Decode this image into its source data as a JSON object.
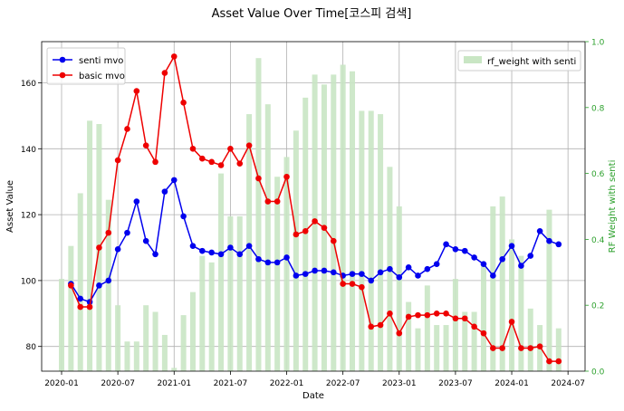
{
  "chart_data": {
    "type": "line",
    "title": "Asset Value Over Time[코스피 검색]",
    "xlabel": "Date",
    "ylabel": "Asset Value",
    "y2label": "RF Weight with senti",
    "xticks": [
      "2020-01",
      "2020-07",
      "2021-01",
      "2021-07",
      "2022-01",
      "2022-07",
      "2023-01",
      "2023-07",
      "2024-01",
      "2024-07"
    ],
    "yticks": [
      80,
      100,
      120,
      140,
      160
    ],
    "y2ticks": [
      "0.0",
      "0.2",
      "0.4",
      "0.6",
      "0.8",
      "1.0"
    ],
    "ylim": [
      72.5,
      172.5
    ],
    "y2lim": [
      0,
      1
    ],
    "grid": true,
    "legend_left": "upper-left",
    "legend_right": "upper-right",
    "colors": {
      "senti": "#0000ee",
      "basic": "#ee0000",
      "bars": "#c9e6c4",
      "y2axis": "#2ca02c"
    },
    "series": [
      {
        "name": "senti mvo",
        "color": "#0000ee",
        "x": [
          "2020-02",
          "2020-03",
          "2020-04",
          "2020-05",
          "2020-06",
          "2020-07",
          "2020-08",
          "2020-09",
          "2020-10",
          "2020-11",
          "2020-12",
          "2021-01",
          "2021-02",
          "2021-03",
          "2021-04",
          "2021-05",
          "2021-06",
          "2021-07",
          "2021-08",
          "2021-09",
          "2021-10",
          "2021-11",
          "2021-12",
          "2022-01",
          "2022-02",
          "2022-03",
          "2022-04",
          "2022-05",
          "2022-06",
          "2022-07",
          "2022-08",
          "2022-09",
          "2022-10",
          "2022-11",
          "2022-12",
          "2023-01",
          "2023-02",
          "2023-03",
          "2023-04",
          "2023-05",
          "2023-06",
          "2023-07",
          "2023-08",
          "2023-09",
          "2023-10",
          "2023-11",
          "2023-12",
          "2024-01",
          "2024-02",
          "2024-03",
          "2024-04",
          "2024-05",
          "2024-06"
        ],
        "values": [
          99,
          94.5,
          93.5,
          98.5,
          100,
          109.5,
          114.5,
          124,
          112,
          108,
          127,
          130.5,
          119.5,
          110.5,
          109,
          108.5,
          108,
          110,
          108,
          110.5,
          106.5,
          105.5,
          105.5,
          107,
          101.5,
          102,
          103,
          103,
          102.5,
          101.5,
          102,
          102,
          100,
          102.5,
          103.5,
          101,
          104,
          101.5,
          103.5,
          105,
          111,
          109.5,
          109,
          107,
          105,
          101.5,
          106.5,
          110.5,
          104.5,
          107.5,
          115,
          112,
          111
        ]
      },
      {
        "name": "basic mvo",
        "color": "#ee0000",
        "x": [
          "2020-02",
          "2020-03",
          "2020-04",
          "2020-05",
          "2020-06",
          "2020-07",
          "2020-08",
          "2020-09",
          "2020-10",
          "2020-11",
          "2020-12",
          "2021-01",
          "2021-02",
          "2021-03",
          "2021-04",
          "2021-05",
          "2021-06",
          "2021-07",
          "2021-08",
          "2021-09",
          "2021-10",
          "2021-11",
          "2021-12",
          "2022-01",
          "2022-02",
          "2022-03",
          "2022-04",
          "2022-05",
          "2022-06",
          "2022-07",
          "2022-08",
          "2022-09",
          "2022-10",
          "2022-11",
          "2022-12",
          "2023-01",
          "2023-02",
          "2023-03",
          "2023-04",
          "2023-05",
          "2023-06",
          "2023-07",
          "2023-08",
          "2023-09",
          "2023-10",
          "2023-11",
          "2023-12",
          "2024-01",
          "2024-02",
          "2024-03",
          "2024-04",
          "2024-05",
          "2024-06"
        ],
        "values": [
          98.5,
          92,
          92,
          110,
          114.5,
          136.5,
          146,
          157.5,
          141,
          136,
          163,
          168,
          154,
          140,
          137,
          136,
          135,
          140,
          135.5,
          141,
          131,
          124,
          124,
          131.5,
          114,
          115,
          118,
          116,
          112,
          99,
          99,
          98,
          86,
          86.5,
          90,
          84,
          89,
          89.5,
          89.5,
          90,
          90,
          88.5,
          88.5,
          86,
          84,
          79.5,
          79.5,
          87.5,
          79.5,
          79.5,
          80,
          75.5,
          75.5
        ]
      },
      {
        "name": "rf_weight with senti",
        "type": "bar",
        "axis": "right",
        "x": [
          "2020-01",
          "2020-02",
          "2020-03",
          "2020-04",
          "2020-05",
          "2020-06",
          "2020-07",
          "2020-08",
          "2020-09",
          "2020-10",
          "2020-11",
          "2020-12",
          "2021-01",
          "2021-02",
          "2021-03",
          "2021-04",
          "2021-05",
          "2021-06",
          "2021-07",
          "2021-08",
          "2021-09",
          "2021-10",
          "2021-11",
          "2021-12",
          "2022-01",
          "2022-02",
          "2022-03",
          "2022-04",
          "2022-05",
          "2022-06",
          "2022-07",
          "2022-08",
          "2022-09",
          "2022-10",
          "2022-11",
          "2022-12",
          "2023-01",
          "2023-02",
          "2023-03",
          "2023-04",
          "2023-05",
          "2023-06",
          "2023-07",
          "2023-08",
          "2023-09",
          "2023-10",
          "2023-11",
          "2023-12",
          "2024-01",
          "2024-02",
          "2024-03",
          "2024-04",
          "2024-05",
          "2024-06"
        ],
        "values": [
          0.28,
          0.38,
          0.54,
          0.76,
          0.75,
          0.52,
          0.2,
          0.09,
          0.09,
          0.2,
          0.18,
          0.11,
          0.01,
          0.17,
          0.24,
          0.35,
          0.33,
          0.6,
          0.47,
          0.47,
          0.78,
          0.95,
          0.81,
          0.59,
          0.65,
          0.73,
          0.83,
          0.9,
          0.87,
          0.9,
          0.93,
          0.91,
          0.79,
          0.79,
          0.78,
          0.62,
          0.5,
          0.21,
          0.13,
          0.26,
          0.14,
          0.14,
          0.28,
          0.18,
          0.18,
          0.32,
          0.5,
          0.53,
          0.4,
          0.35,
          0.19,
          0.14,
          0.49,
          0.13
        ]
      }
    ]
  }
}
